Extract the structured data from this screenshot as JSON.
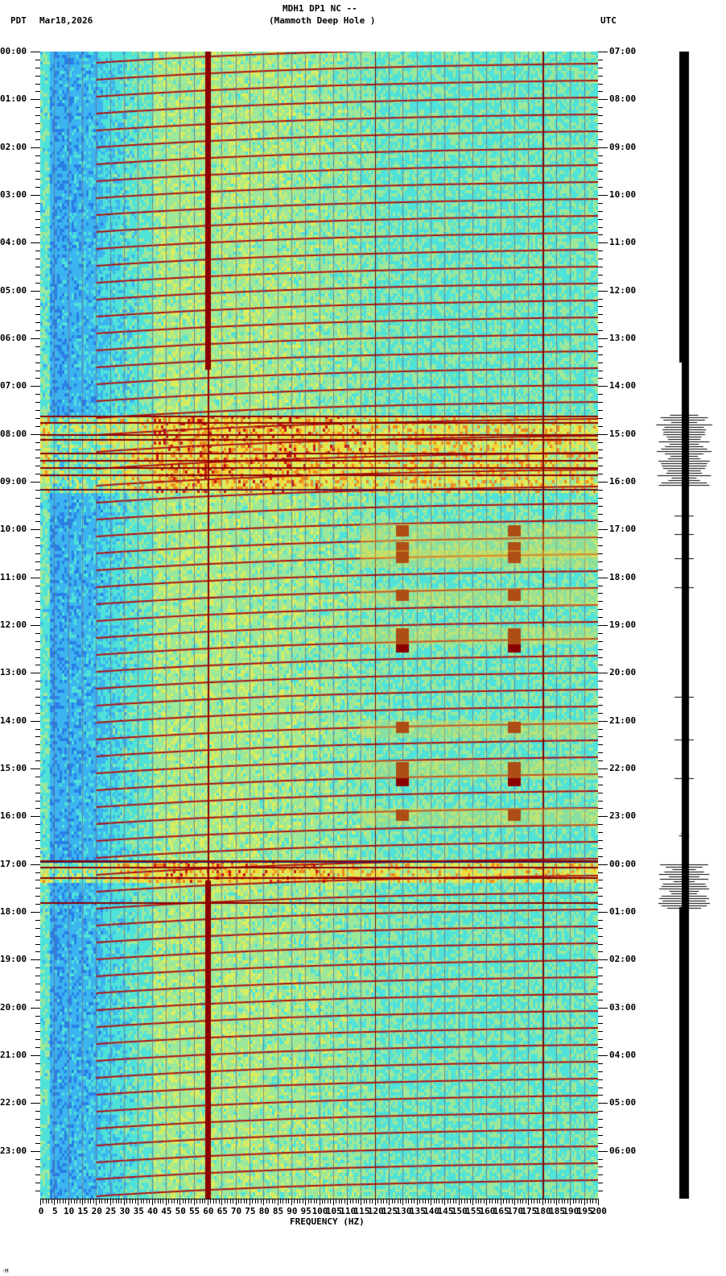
{
  "header": {
    "station": "MDH1 DP1 NC --",
    "station_name": "(Mammoth Deep Hole )",
    "left_tz": "PDT",
    "date": "Mar18,2026",
    "right_tz": "UTC"
  },
  "chart_data": {
    "type": "heatmap",
    "title": "MDH1 DP1 NC -- (Mammoth Deep Hole ) spectrogram",
    "xlabel": "FREQUENCY (HZ)",
    "ylabel_left": "PDT",
    "ylabel_right": "UTC",
    "x_range": [
      0,
      200
    ],
    "x_ticks": [
      "0",
      "5",
      "10",
      "15",
      "20",
      "25",
      "30",
      "35",
      "40",
      "45",
      "50",
      "55",
      "60",
      "65",
      "70",
      "75",
      "80",
      "85",
      "90",
      "95",
      "100",
      "105",
      "110",
      "115",
      "120",
      "125",
      "130",
      "135",
      "140",
      "145",
      "150",
      "155",
      "160",
      "165",
      "170",
      "175",
      "180",
      "185",
      "190",
      "195",
      "200"
    ],
    "y_ticks_left": [
      "00:00",
      "01:00",
      "02:00",
      "03:00",
      "04:00",
      "05:00",
      "06:00",
      "07:00",
      "08:00",
      "09:00",
      "10:00",
      "11:00",
      "12:00",
      "13:00",
      "14:00",
      "15:00",
      "16:00",
      "17:00",
      "18:00",
      "19:00",
      "20:00",
      "21:00",
      "22:00",
      "23:00"
    ],
    "y_ticks_right": [
      "07:00",
      "08:00",
      "09:00",
      "10:00",
      "11:00",
      "12:00",
      "13:00",
      "14:00",
      "15:00",
      "16:00",
      "17:00",
      "18:00",
      "19:00",
      "20:00",
      "21:00",
      "22:00",
      "23:00",
      "00:00",
      "01:00",
      "02:00",
      "03:00",
      "04:00",
      "05:00",
      "06:00"
    ],
    "grid": true,
    "colormap": [
      "#1e4fd8",
      "#2f8ee8",
      "#4fe0d8",
      "#c8ec70",
      "#f0e040",
      "#e88020",
      "#c01010",
      "#8b0000"
    ],
    "features": [
      {
        "type": "persistent_line",
        "freq_hz": 60,
        "note": "strong 60 Hz line, gap ~06:40–17:20 PDT"
      },
      {
        "type": "persistent_line",
        "freq_hz": 180,
        "note": "thin dark line"
      },
      {
        "type": "persistent_line",
        "freq_hz": 120,
        "note": "thin dark line"
      },
      {
        "type": "disturbance_band",
        "start": "07:35",
        "end": "09:10",
        "note": "broadband noise bands"
      },
      {
        "type": "disturbance_band",
        "start": "16:55",
        "end": "17:20",
        "note": "broadband event"
      },
      {
        "type": "tonal_bursts",
        "freq_hz": [
          130,
          170
        ],
        "times": [
          "10:00",
          "10:30",
          "11:25",
          "12:10",
          "14:10",
          "15:00",
          "16:00"
        ]
      }
    ]
  },
  "trace": {
    "events": [
      {
        "time": "07:35",
        "amplitude": "large"
      },
      {
        "time": "08:00-09:10",
        "amplitude": "medium"
      },
      {
        "time": "16:20",
        "amplitude": "small"
      },
      {
        "time": "17:00-17:55",
        "amplitude": "large"
      }
    ]
  },
  "footer_mark": "-M"
}
